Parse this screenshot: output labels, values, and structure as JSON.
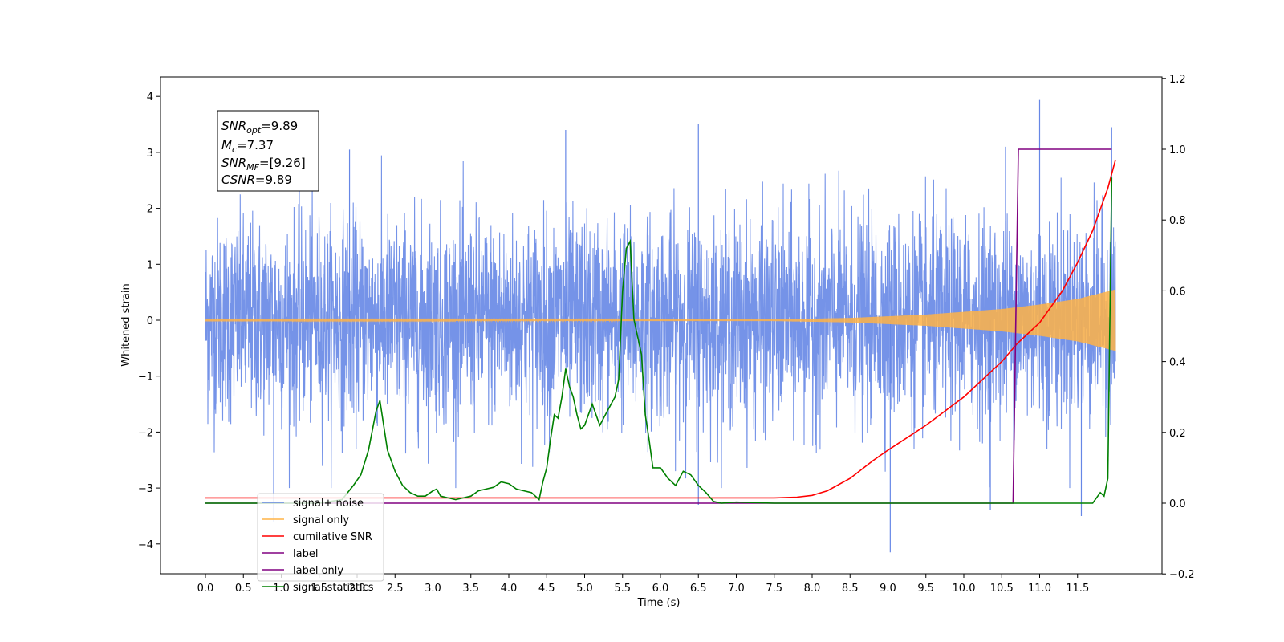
{
  "chart_data": {
    "type": "line",
    "xlabel": "Time (s)",
    "ylabel_left": "Whitened strain",
    "ylabel_right": "",
    "xlim": [
      -0.6,
      12.6
    ],
    "ylim_left": [
      -4.5,
      4.35
    ],
    "ylim_right": [
      -0.2,
      1.2
    ],
    "x_ticks": [
      "0.0",
      "0.5",
      "1.0",
      "1.5",
      "2.0",
      "2.5",
      "3.0",
      "3.5",
      "4.0",
      "4.5",
      "5.0",
      "5.5",
      "6.0",
      "6.5",
      "7.0",
      "7.5",
      "8.0",
      "8.5",
      "9.0",
      "9.5",
      "10.0",
      "10.5",
      "11.0",
      "11.5"
    ],
    "y_ticks_left": [
      "4",
      "3",
      "2",
      "1",
      "0",
      "−1",
      "−2",
      "−3",
      "−4"
    ],
    "y_ticks_right": [
      "1.2",
      "1.0",
      "0.8",
      "0.6",
      "0.4",
      "0.2",
      "0.0",
      "−0.2"
    ],
    "grid": false,
    "legend_position": "lower-left",
    "annotation": {
      "snr_opt": "=9.89",
      "mc": "=7.37",
      "snr_mf": "=[9.26]",
      "csnr": "=9.89"
    },
    "series": [
      {
        "name": "signal+ noise",
        "axis": "left",
        "color": "#6687e6",
        "description": "white noise ~ std 0.9 over 0 to 12 s, with outlier spikes",
        "noise_std": 0.9,
        "x_range": [
          0,
          12
        ],
        "spikes": [
          [
            0.9,
            -3.6
          ],
          [
            6.5,
            -3.3
          ],
          [
            9.03,
            -4.15
          ],
          [
            10.35,
            -3.4
          ],
          [
            11.55,
            -3.5
          ],
          [
            11.0,
            3.95
          ],
          [
            6.5,
            3.5
          ],
          [
            4.75,
            3.4
          ],
          [
            11.95,
            3.45
          ],
          [
            10.55,
            3.1
          ],
          [
            1.9,
            3.05
          ]
        ]
      },
      {
        "name": "signal only",
        "axis": "left",
        "color": "#ffb347",
        "description": "chirp, amplitude grows from ~0 at 7.5 s to ~0.55 at 12 s",
        "envelope": [
          [
            0,
            0.01
          ],
          [
            7.5,
            0.015
          ],
          [
            8.5,
            0.04
          ],
          [
            9.5,
            0.1
          ],
          [
            10.5,
            0.2
          ],
          [
            11.0,
            0.28
          ],
          [
            11.5,
            0.38
          ],
          [
            12.0,
            0.55
          ]
        ]
      },
      {
        "name": "cumilative SNR",
        "axis": "right",
        "color": "#ff0000",
        "x": [
          0.0,
          7.5,
          7.8,
          8.0,
          8.2,
          8.5,
          8.8,
          9.0,
          9.5,
          10.0,
          10.5,
          10.7,
          11.0,
          11.3,
          11.5,
          11.7,
          11.9,
          12.0
        ],
        "y": [
          0.015,
          0.015,
          0.017,
          0.022,
          0.035,
          0.07,
          0.12,
          0.15,
          0.22,
          0.3,
          0.4,
          0.45,
          0.51,
          0.6,
          0.68,
          0.77,
          0.89,
          0.97
        ]
      },
      {
        "name": "label",
        "axis": "right",
        "color": "#800080",
        "x": [
          0.0,
          10.65,
          10.72,
          11.95
        ],
        "y": [
          0.0,
          0.0,
          1.0,
          1.0
        ]
      },
      {
        "name": "label only",
        "axis": "right",
        "color": "#800080",
        "x": [],
        "y": []
      },
      {
        "name": "signal statistics",
        "axis": "right",
        "color": "#008000",
        "x": [
          0.0,
          1.5,
          1.8,
          1.95,
          2.05,
          2.15,
          2.25,
          2.3,
          2.35,
          2.4,
          2.5,
          2.6,
          2.7,
          2.8,
          2.9,
          3.0,
          3.05,
          3.1,
          3.2,
          3.3,
          3.4,
          3.5,
          3.6,
          3.7,
          3.8,
          3.9,
          4.0,
          4.1,
          4.2,
          4.3,
          4.35,
          4.4,
          4.45,
          4.5,
          4.55,
          4.6,
          4.65,
          4.7,
          4.75,
          4.8,
          4.85,
          4.9,
          4.95,
          5.0,
          5.05,
          5.1,
          5.15,
          5.2,
          5.3,
          5.4,
          5.45,
          5.5,
          5.55,
          5.6,
          5.65,
          5.7,
          5.75,
          5.8,
          5.85,
          5.9,
          6.0,
          6.1,
          6.2,
          6.3,
          6.4,
          6.5,
          6.6,
          6.7,
          6.8,
          7.0,
          7.5,
          9.4,
          9.6,
          11.7,
          11.8,
          11.85,
          11.9,
          11.95
        ],
        "y": [
          0.0,
          0.0,
          0.01,
          0.05,
          0.08,
          0.15,
          0.26,
          0.29,
          0.22,
          0.15,
          0.09,
          0.05,
          0.03,
          0.02,
          0.02,
          0.035,
          0.04,
          0.02,
          0.015,
          0.01,
          0.015,
          0.02,
          0.035,
          0.04,
          0.045,
          0.06,
          0.055,
          0.04,
          0.035,
          0.03,
          0.02,
          0.01,
          0.06,
          0.1,
          0.18,
          0.25,
          0.24,
          0.3,
          0.38,
          0.33,
          0.3,
          0.25,
          0.21,
          0.22,
          0.25,
          0.28,
          0.25,
          0.22,
          0.26,
          0.3,
          0.35,
          0.6,
          0.72,
          0.74,
          0.52,
          0.47,
          0.42,
          0.25,
          0.18,
          0.1,
          0.1,
          0.07,
          0.05,
          0.09,
          0.08,
          0.05,
          0.03,
          0.005,
          0.0,
          0.003,
          0.0,
          0.0,
          0.0,
          0.0,
          0.03,
          0.02,
          0.07,
          0.92
        ]
      }
    ]
  }
}
